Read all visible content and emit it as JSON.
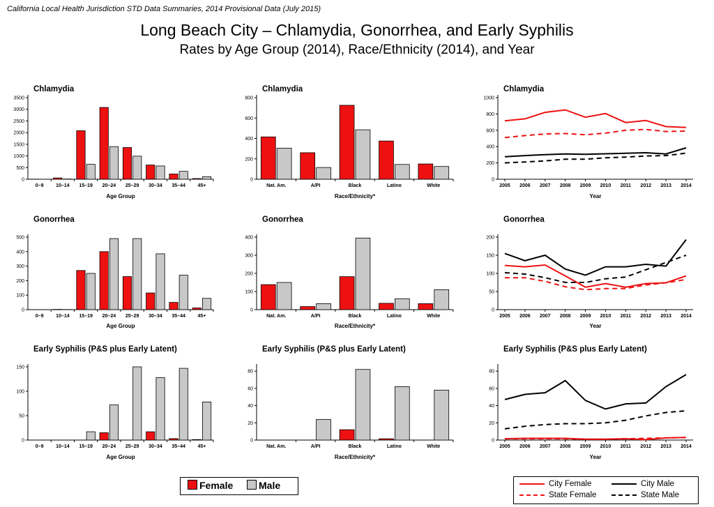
{
  "header_note": "California Local Health Jurisdiction STD Data Summaries, 2014 Provisional Data (July 2015)",
  "title": "Long Beach City – Chlamydia, Gonorrhea, and Early Syphilis",
  "subtitle": "Rates by Age Group (2014), Race/Ethnicity (2014), and Year",
  "colors": {
    "female": "#ee1111",
    "male": "#c8c8c8",
    "city_male": "#000000",
    "state_female": "#ee1111",
    "state_male": "#000000"
  },
  "legend_bars": {
    "female": "Female",
    "male": "Male"
  },
  "legend_lines": {
    "city_female": "City Female",
    "city_male": "City Male",
    "state_female": "State Female",
    "state_male": "State Male"
  },
  "chart_data": [
    {
      "type": "bar",
      "title": "Chlamydia",
      "xlabel": "Age Group",
      "categories": [
        "0–9",
        "10–14",
        "15–19",
        "20–24",
        "25–29",
        "30–34",
        "35–44",
        "45+"
      ],
      "series": [
        {
          "name": "Female",
          "values": [
            5,
            55,
            2080,
            3080,
            1360,
            610,
            225,
            30
          ]
        },
        {
          "name": "Male",
          "values": [
            2,
            10,
            640,
            1400,
            990,
            570,
            340,
            110
          ]
        }
      ],
      "ylim": [
        0,
        3500
      ],
      "yticks": [
        0,
        500,
        1000,
        1500,
        2000,
        2500,
        3000,
        3500
      ]
    },
    {
      "type": "bar",
      "title": "Chlamydia",
      "xlabel": "Race/Ethnicity*",
      "categories": [
        "Nat. Am.",
        "A/PI",
        "Black",
        "Latino",
        "White"
      ],
      "series": [
        {
          "name": "Female",
          "values": [
            415,
            260,
            725,
            375,
            150
          ]
        },
        {
          "name": "Male",
          "values": [
            305,
            115,
            485,
            145,
            125
          ]
        }
      ],
      "ylim": [
        0,
        800
      ],
      "yticks": [
        0,
        200,
        400,
        600,
        800
      ]
    },
    {
      "type": "line",
      "title": "Chlamydia",
      "xlabel": "Year",
      "x": [
        2005,
        2006,
        2007,
        2008,
        2009,
        2010,
        2011,
        2012,
        2013,
        2014
      ],
      "series": [
        {
          "name": "City Female",
          "values": [
            715,
            740,
            820,
            850,
            760,
            805,
            695,
            720,
            645,
            635
          ]
        },
        {
          "name": "State Female",
          "values": [
            510,
            535,
            555,
            560,
            545,
            565,
            600,
            610,
            585,
            590
          ]
        },
        {
          "name": "City Male",
          "values": [
            275,
            290,
            302,
            310,
            305,
            312,
            318,
            325,
            310,
            385
          ]
        },
        {
          "name": "State Male",
          "values": [
            200,
            212,
            225,
            245,
            245,
            262,
            272,
            285,
            290,
            320
          ]
        }
      ],
      "ylim": [
        0,
        1000
      ],
      "yticks": [
        0,
        200,
        400,
        600,
        800,
        1000
      ]
    },
    {
      "type": "bar",
      "title": "Gonorrhea",
      "xlabel": "Age Group",
      "categories": [
        "0–9",
        "10–14",
        "15–19",
        "20–24",
        "25–29",
        "30–34",
        "35–44",
        "45+"
      ],
      "series": [
        {
          "name": "Female",
          "values": [
            0,
            2,
            270,
            400,
            228,
            115,
            50,
            12
          ]
        },
        {
          "name": "Male",
          "values": [
            0,
            1,
            250,
            490,
            490,
            385,
            238,
            78
          ]
        }
      ],
      "ylim": [
        0,
        500
      ],
      "yticks": [
        0,
        100,
        200,
        300,
        400,
        500
      ]
    },
    {
      "type": "bar",
      "title": "Gonorrhea",
      "xlabel": "Race/Ethnicity*",
      "categories": [
        "Nat. Am.",
        "A/PI",
        "Black",
        "Latino",
        "White"
      ],
      "series": [
        {
          "name": "Female",
          "values": [
            138,
            17,
            182,
            35,
            33
          ]
        },
        {
          "name": "Male",
          "values": [
            150,
            33,
            395,
            60,
            110
          ]
        }
      ],
      "ylim": [
        0,
        400
      ],
      "yticks": [
        0,
        100,
        200,
        300,
        400
      ]
    },
    {
      "type": "line",
      "title": "Gonorrhea",
      "xlabel": "Year",
      "x": [
        2005,
        2006,
        2007,
        2008,
        2009,
        2010,
        2011,
        2012,
        2013,
        2014
      ],
      "series": [
        {
          "name": "City Female",
          "values": [
            122,
            118,
            123,
            93,
            62,
            72,
            62,
            72,
            74,
            93
          ]
        },
        {
          "name": "State Female",
          "values": [
            88,
            88,
            78,
            63,
            55,
            58,
            58,
            68,
            74,
            83
          ]
        },
        {
          "name": "City Male",
          "values": [
            155,
            135,
            150,
            112,
            95,
            118,
            118,
            125,
            120,
            193
          ]
        },
        {
          "name": "State Male",
          "values": [
            102,
            98,
            88,
            75,
            75,
            85,
            90,
            110,
            130,
            150
          ]
        }
      ],
      "ylim": [
        0,
        200
      ],
      "yticks": [
        0,
        50,
        100,
        150,
        200
      ]
    },
    {
      "type": "bar",
      "title": "Early Syphilis (P&S plus Early Latent)",
      "xlabel": "Age Group",
      "categories": [
        "0–9",
        "10–14",
        "15–19",
        "20–24",
        "25–29",
        "30–34",
        "35–44",
        "45+"
      ],
      "series": [
        {
          "name": "Female",
          "values": [
            0,
            0,
            0,
            15,
            0,
            17,
            3,
            1
          ]
        },
        {
          "name": "Male",
          "values": [
            0,
            0,
            17,
            72,
            150,
            128,
            147,
            78
          ]
        }
      ],
      "ylim": [
        0,
        150
      ],
      "yticks": [
        0,
        50,
        100,
        150
      ]
    },
    {
      "type": "bar",
      "title": "Early Syphilis (P&S plus Early Latent)",
      "xlabel": "Race/Ethnicity*",
      "categories": [
        "Nat. Am.",
        "A/PI",
        "Black",
        "Latino",
        "White"
      ],
      "series": [
        {
          "name": "Female",
          "values": [
            0,
            0,
            12,
            1.5,
            0
          ]
        },
        {
          "name": "Male",
          "values": [
            0,
            24,
            82,
            62,
            58
          ]
        }
      ],
      "ylim": [
        0,
        85
      ],
      "yticks": [
        0,
        20,
        40,
        60,
        80
      ]
    },
    {
      "type": "line",
      "title": "Early Syphilis (P&S plus Early Latent)",
      "xlabel": "Year",
      "x": [
        2005,
        2006,
        2007,
        2008,
        2009,
        2010,
        2011,
        2012,
        2013,
        2014
      ],
      "series": [
        {
          "name": "City Female",
          "values": [
            1.5,
            2,
            2,
            2,
            1,
            1,
            1.5,
            0.5,
            2.5,
            3
          ]
        },
        {
          "name": "State Female",
          "values": [
            1.5,
            1.5,
            1.5,
            1.5,
            1,
            1,
            1.5,
            2,
            2.5,
            3
          ]
        },
        {
          "name": "City Male",
          "values": [
            47,
            53,
            55,
            69,
            46,
            36,
            42,
            43,
            62,
            76
          ]
        },
        {
          "name": "State Male",
          "values": [
            13,
            16,
            18,
            19,
            19,
            20,
            23,
            28,
            32,
            34
          ]
        }
      ],
      "ylim": [
        0,
        85
      ],
      "yticks": [
        0,
        20,
        40,
        60,
        80
      ]
    }
  ]
}
